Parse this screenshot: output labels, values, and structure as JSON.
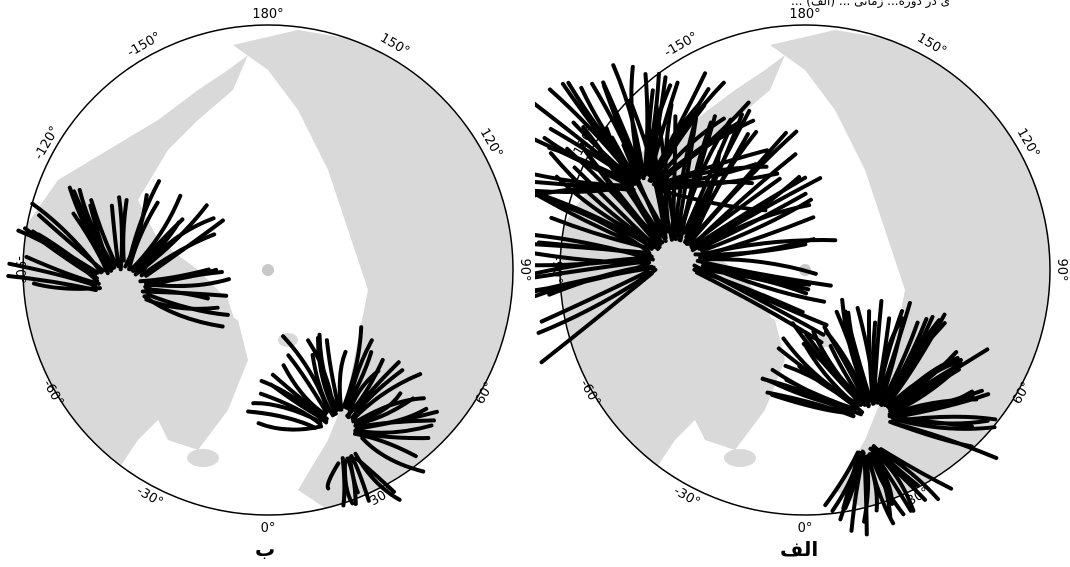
{
  "header_text_partial": "ی در دوره... زمانی ... (الف) ...",
  "panels": [
    {
      "id": "right",
      "caption": "الف",
      "longitude_labels": {
        "deg_0": "0°",
        "deg_30": "30°",
        "deg_60": "60°",
        "deg_90": "90°",
        "deg_120": "120°",
        "deg_150": "150°",
        "deg_180": "180°",
        "deg_m150": "-150°",
        "deg_m120": "-120°",
        "deg_m90": "-90°",
        "deg_m60": "-60°",
        "deg_m30": "-30°"
      }
    },
    {
      "id": "left",
      "caption": "ب",
      "longitude_labels": {
        "deg_0": "0°",
        "deg_30": "30°",
        "deg_60": "60°",
        "deg_90": "90°",
        "deg_120": "120°",
        "deg_150": "150°",
        "deg_180": "180°",
        "deg_m150": "-150°",
        "deg_m120": "-120°",
        "deg_m90": "-90°",
        "deg_m60": "-60°",
        "deg_m30": "-30°"
      }
    }
  ],
  "colors": {
    "land": "#d9d9d9",
    "ocean": "#ffffff",
    "tracks": "#000000",
    "frame": "#000000"
  }
}
